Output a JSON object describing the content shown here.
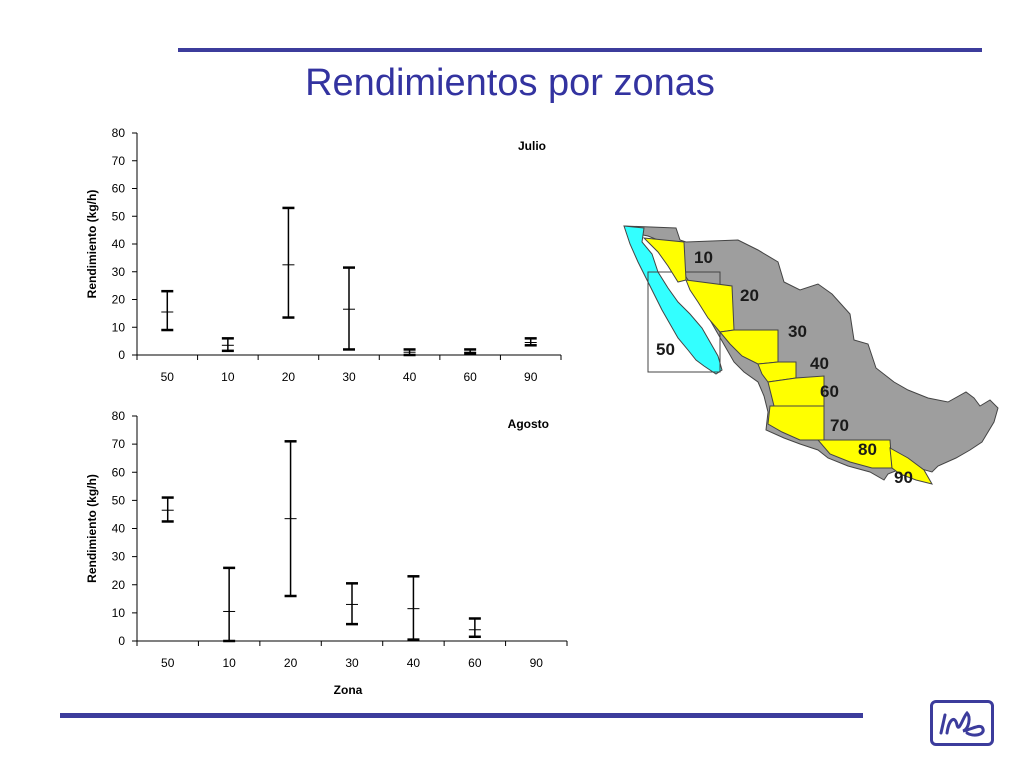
{
  "slide": {
    "title": "Rendimientos por zonas"
  },
  "colors": {
    "accent": "#3c3c9c",
    "map_gray": "#9e9e9e",
    "map_yellow": "#ffff00",
    "map_cyan": "#33ffff"
  },
  "chart_data": [
    {
      "type": "error-bar",
      "title": "Julio",
      "ylabel": "Rendimiento (kg/h)",
      "xlabel": "",
      "ylim": [
        0,
        80
      ],
      "yticks": [
        0,
        10,
        20,
        30,
        40,
        50,
        60,
        70,
        80
      ],
      "categories": [
        "50",
        "10",
        "20",
        "30",
        "40",
        "60",
        "90"
      ],
      "series": [
        {
          "low": [
            9,
            1.5,
            13.5,
            2,
            0,
            0.5,
            3.5
          ],
          "mid": [
            15.5,
            3.5,
            32.5,
            16.5,
            1,
            1,
            4.5
          ],
          "high": [
            23,
            6,
            53,
            31.5,
            2,
            2,
            6
          ]
        }
      ]
    },
    {
      "type": "error-bar",
      "title": "Agosto",
      "ylabel": "Rendimiento (kg/h)",
      "xlabel": "Zona",
      "ylim": [
        0,
        80
      ],
      "yticks": [
        0,
        10,
        20,
        30,
        40,
        50,
        60,
        70,
        80
      ],
      "categories": [
        "50",
        "10",
        "20",
        "30",
        "40",
        "60",
        "90"
      ],
      "series": [
        {
          "low": [
            42.5,
            0,
            16,
            6,
            0.5,
            1.5,
            null
          ],
          "mid": [
            46.5,
            10.5,
            43.5,
            13,
            11.5,
            4,
            null
          ],
          "high": [
            51,
            26,
            71,
            20.5,
            23,
            8,
            null
          ]
        }
      ]
    }
  ],
  "map": {
    "zones": [
      {
        "label": "10"
      },
      {
        "label": "20"
      },
      {
        "label": "30"
      },
      {
        "label": "40"
      },
      {
        "label": "50"
      },
      {
        "label": "60"
      },
      {
        "label": "70"
      },
      {
        "label": "80"
      },
      {
        "label": "90"
      }
    ]
  }
}
